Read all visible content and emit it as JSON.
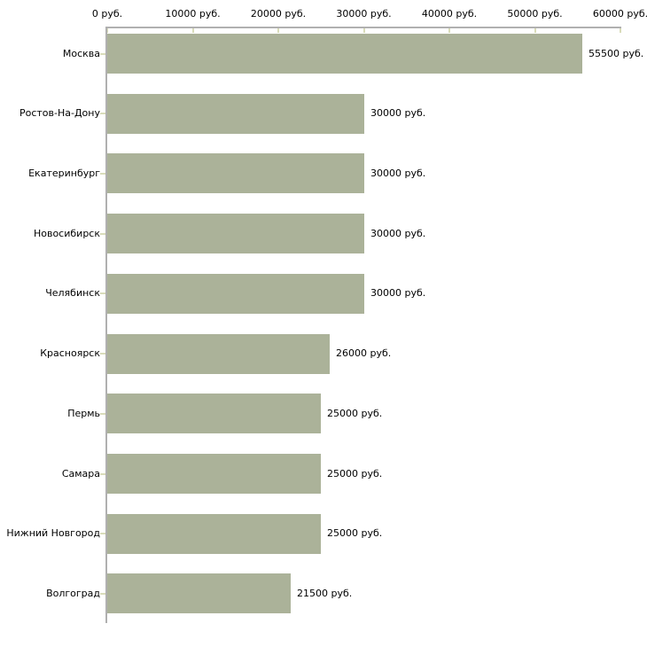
{
  "chart_data": {
    "type": "bar",
    "orientation": "horizontal",
    "title": "",
    "categories": [
      "Москва",
      "Ростов-На-Дону",
      "Екатеринбург",
      "Новосибирск",
      "Челябинск",
      "Красноярск",
      "Пермь",
      "Самара",
      "Нижний Новгород",
      "Волгоград"
    ],
    "values": [
      55500,
      30000,
      30000,
      30000,
      30000,
      26000,
      25000,
      25000,
      25000,
      21500
    ],
    "value_labels": [
      "55500 руб.",
      "30000 руб.",
      "30000 руб.",
      "30000 руб.",
      "30000 руб.",
      "26000 руб.",
      "25000 руб.",
      "25000 руб.",
      "25000 руб.",
      "21500 руб."
    ],
    "x_tick_values": [
      0,
      10000,
      20000,
      30000,
      40000,
      50000,
      60000
    ],
    "x_tick_labels": [
      "0 руб.",
      "10000 руб.",
      "20000 руб.",
      "30000 руб.",
      "40000 руб.",
      "50000 руб.",
      "60000 руб."
    ],
    "xlim": [
      0,
      60000
    ],
    "unit": "руб.",
    "grid": "off",
    "legend": "none",
    "axis_position": "top",
    "colors": {
      "bar": "#abb299",
      "axis_line": "#b0b0b0",
      "tick_mark": "#d9dcba",
      "text": "#000000",
      "background": "#ffffff"
    }
  }
}
